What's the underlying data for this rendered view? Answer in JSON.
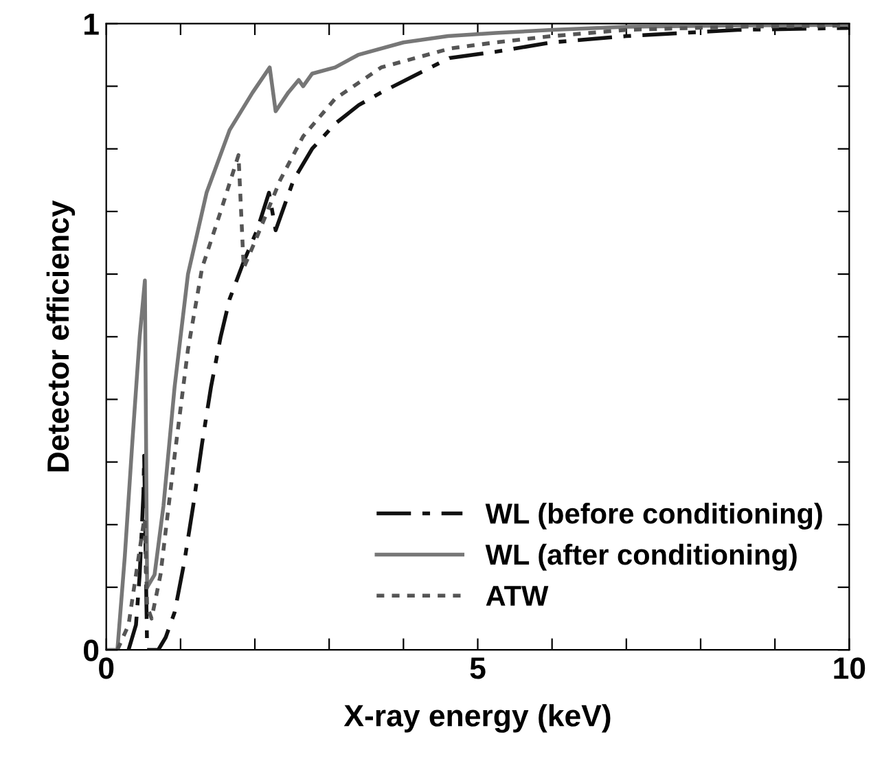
{
  "chart_data": {
    "type": "line",
    "xlabel": "X-ray energy (keV)",
    "ylabel": "Detector efficiency",
    "xlim": [
      0,
      10
    ],
    "ylim": [
      0,
      1
    ],
    "xticks": [
      0,
      {
        "value": 1,
        "label": null
      },
      {
        "value": 2,
        "label": null
      },
      {
        "value": 3,
        "label": null
      },
      {
        "value": 4,
        "label": null
      },
      5,
      {
        "value": 6,
        "label": null
      },
      {
        "value": 7,
        "label": null
      },
      {
        "value": 8,
        "label": null
      },
      {
        "value": 9,
        "label": null
      },
      10
    ],
    "yticks": [
      0,
      {
        "value": 0.1,
        "label": null
      },
      {
        "value": 0.2,
        "label": null
      },
      {
        "value": 0.3,
        "label": null
      },
      {
        "value": 0.4,
        "label": null
      },
      {
        "value": 0.5,
        "label": null
      },
      {
        "value": 0.6,
        "label": null
      },
      {
        "value": 0.7,
        "label": null
      },
      {
        "value": 0.8,
        "label": null
      },
      {
        "value": 0.9,
        "label": null
      },
      1
    ],
    "legend": "lower right",
    "grid": false,
    "marker": "none",
    "series": [
      {
        "name": "WL (before conditioning)",
        "color": "#111111",
        "line_style": "dashdot",
        "x": [
          0.3,
          0.4,
          0.45,
          0.5,
          0.51,
          0.55,
          0.7,
          0.8,
          0.92,
          1.05,
          1.17,
          1.29,
          1.41,
          1.54,
          1.66,
          1.85,
          2.03,
          2.19,
          2.28,
          2.4,
          2.52,
          2.77,
          3.08,
          3.4,
          3.7,
          4.2,
          4.62,
          5.24,
          6,
          7,
          8.5,
          10
        ],
        "values": [
          0,
          0.04,
          0.12,
          0.25,
          0.31,
          0,
          0,
          0.02,
          0.06,
          0.14,
          0.23,
          0.33,
          0.42,
          0.5,
          0.56,
          0.62,
          0.67,
          0.73,
          0.67,
          0.71,
          0.75,
          0.8,
          0.84,
          0.87,
          0.89,
          0.92,
          0.945,
          0.955,
          0.97,
          0.98,
          0.99,
          0.993
        ]
      },
      {
        "name": "WL (after conditioning)",
        "color": "#777777",
        "line_style": "solid",
        "x": [
          0,
          0.15,
          0.25,
          0.35,
          0.45,
          0.52,
          0.55,
          0.65,
          0.77,
          0.92,
          1.1,
          1.35,
          1.66,
          1.97,
          2.2,
          2.28,
          2.45,
          2.59,
          2.65,
          2.77,
          3.08,
          3.39,
          4.0,
          4.6,
          5.24,
          6,
          7,
          8.5,
          10
        ],
        "values": [
          0,
          0,
          0.15,
          0.33,
          0.5,
          0.59,
          0.1,
          0.12,
          0.23,
          0.42,
          0.6,
          0.73,
          0.83,
          0.89,
          0.93,
          0.86,
          0.89,
          0.91,
          0.9,
          0.92,
          0.93,
          0.95,
          0.97,
          0.98,
          0.985,
          0.99,
          0.995,
          0.997,
          0.998
        ]
      },
      {
        "name": "ATW",
        "color": "#555555",
        "line_style": "dotted",
        "x": [
          0.15,
          0.3,
          0.4,
          0.5,
          0.52,
          0.55,
          0.61,
          0.73,
          0.92,
          1.1,
          1.29,
          1.54,
          1.78,
          1.85,
          2.03,
          2.34,
          2.65,
          3.08,
          3.7,
          4.62,
          5.24,
          6,
          7,
          8.5,
          10
        ],
        "values": [
          0,
          0.04,
          0.12,
          0.2,
          0.21,
          0.07,
          0.05,
          0.12,
          0.31,
          0.48,
          0.61,
          0.7,
          0.79,
          0.61,
          0.66,
          0.75,
          0.82,
          0.88,
          0.93,
          0.96,
          0.97,
          0.98,
          0.99,
          0.995,
          0.997
        ]
      }
    ]
  }
}
